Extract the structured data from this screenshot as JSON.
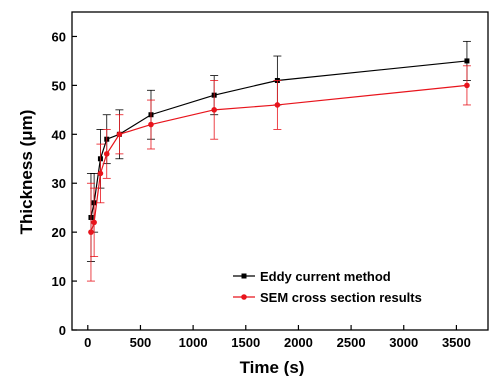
{
  "chart_data": {
    "type": "line",
    "title": "",
    "xlabel": "Time (s)",
    "ylabel": "Thickness (μm)",
    "xlim": [
      -150,
      3800
    ],
    "ylim": [
      0,
      65
    ],
    "xticks": [
      0,
      500,
      1000,
      1500,
      2000,
      2500,
      3000,
      3500
    ],
    "yticks": [
      0,
      10,
      20,
      30,
      40,
      50,
      60
    ],
    "x_tick_labels": [
      "0",
      "500",
      "1000",
      "1500",
      "2000",
      "2500",
      "3000",
      "3500"
    ],
    "y_tick_labels": [
      "0",
      "10",
      "20",
      "30",
      "40",
      "50",
      "60"
    ],
    "grid": false,
    "legend_position": "bottom-right",
    "series": [
      {
        "name": "Eddy current method",
        "color": "#000000",
        "marker": "square",
        "x": [
          30,
          60,
          120,
          180,
          300,
          600,
          1200,
          1800,
          3600
        ],
        "y": [
          23,
          26,
          35,
          39,
          40,
          44,
          48,
          51,
          55
        ],
        "err": [
          9,
          6,
          6,
          5,
          5,
          5,
          4,
          5,
          4
        ]
      },
      {
        "name": "SEM cross section results",
        "color": "#e8141c",
        "marker": "circle",
        "x": [
          30,
          60,
          120,
          180,
          300,
          600,
          1200,
          1800,
          3600
        ],
        "y": [
          20,
          22,
          32,
          36,
          40,
          42,
          45,
          46,
          50
        ],
        "err": [
          10,
          7,
          6,
          5,
          4,
          5,
          6,
          5,
          4
        ]
      }
    ]
  }
}
